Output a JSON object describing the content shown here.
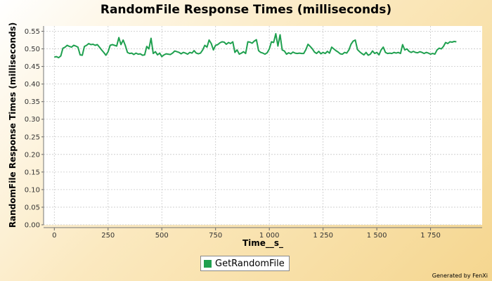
{
  "chart_data": {
    "type": "line",
    "title": "RandomFile Response Times (milliseconds)",
    "xlabel": "Time__s_",
    "ylabel": "RandomFile Response Times (milliseconds)",
    "xlim": [
      -50,
      1990
    ],
    "ylim": [
      0,
      0.565
    ],
    "x_ticks": [
      0,
      250,
      500,
      750,
      1000,
      1250,
      1500,
      1750
    ],
    "x_tick_labels": [
      "0",
      "250",
      "500",
      "750",
      "1 000",
      "1 250",
      "1 500",
      "1 750"
    ],
    "y_ticks": [
      0,
      0.05,
      0.1,
      0.15,
      0.2,
      0.25,
      0.3,
      0.35,
      0.4,
      0.45,
      0.5,
      0.55
    ],
    "y_tick_labels": [
      "0.00",
      "0.05",
      "0.10",
      "0.15",
      "0.20",
      "0.25",
      "0.30",
      "0.35",
      "0.40",
      "0.45",
      "0.50",
      "0.55"
    ],
    "grid": true,
    "legend_position": "bottom-center",
    "series": [
      {
        "name": "GetRandomFile",
        "color": "#1fa04f",
        "points": [
          [
            0,
            0.477
          ],
          [
            10,
            0.478
          ],
          [
            20,
            0.475
          ],
          [
            30,
            0.48
          ],
          [
            40,
            0.502
          ],
          [
            50,
            0.505
          ],
          [
            60,
            0.51
          ],
          [
            70,
            0.507
          ],
          [
            80,
            0.505
          ],
          [
            90,
            0.51
          ],
          [
            100,
            0.508
          ],
          [
            110,
            0.505
          ],
          [
            120,
            0.483
          ],
          [
            130,
            0.482
          ],
          [
            140,
            0.507
          ],
          [
            150,
            0.51
          ],
          [
            160,
            0.515
          ],
          [
            170,
            0.512
          ],
          [
            180,
            0.513
          ],
          [
            190,
            0.51
          ],
          [
            200,
            0.512
          ],
          [
            210,
            0.505
          ],
          [
            220,
            0.497
          ],
          [
            230,
            0.49
          ],
          [
            240,
            0.482
          ],
          [
            250,
            0.492
          ],
          [
            260,
            0.51
          ],
          [
            270,
            0.512
          ],
          [
            280,
            0.51
          ],
          [
            290,
            0.508
          ],
          [
            300,
            0.532
          ],
          [
            310,
            0.512
          ],
          [
            320,
            0.525
          ],
          [
            330,
            0.51
          ],
          [
            340,
            0.49
          ],
          [
            350,
            0.487
          ],
          [
            360,
            0.488
          ],
          [
            370,
            0.484
          ],
          [
            380,
            0.488
          ],
          [
            390,
            0.485
          ],
          [
            400,
            0.486
          ],
          [
            410,
            0.482
          ],
          [
            420,
            0.483
          ],
          [
            430,
            0.507
          ],
          [
            440,
            0.5
          ],
          [
            450,
            0.53
          ],
          [
            460,
            0.487
          ],
          [
            470,
            0.492
          ],
          [
            480,
            0.483
          ],
          [
            490,
            0.488
          ],
          [
            500,
            0.478
          ],
          [
            510,
            0.483
          ],
          [
            520,
            0.486
          ],
          [
            530,
            0.485
          ],
          [
            540,
            0.484
          ],
          [
            550,
            0.488
          ],
          [
            560,
            0.494
          ],
          [
            570,
            0.492
          ],
          [
            580,
            0.49
          ],
          [
            590,
            0.486
          ],
          [
            600,
            0.49
          ],
          [
            610,
            0.488
          ],
          [
            620,
            0.485
          ],
          [
            630,
            0.49
          ],
          [
            640,
            0.488
          ],
          [
            650,
            0.495
          ],
          [
            660,
            0.488
          ],
          [
            670,
            0.486
          ],
          [
            680,
            0.488
          ],
          [
            690,
            0.497
          ],
          [
            700,
            0.51
          ],
          [
            710,
            0.505
          ],
          [
            720,
            0.525
          ],
          [
            730,
            0.515
          ],
          [
            740,
            0.497
          ],
          [
            750,
            0.51
          ],
          [
            760,
            0.512
          ],
          [
            770,
            0.517
          ],
          [
            780,
            0.52
          ],
          [
            790,
            0.519
          ],
          [
            800,
            0.513
          ],
          [
            810,
            0.518
          ],
          [
            820,
            0.515
          ],
          [
            830,
            0.52
          ],
          [
            840,
            0.49
          ],
          [
            850,
            0.497
          ],
          [
            860,
            0.485
          ],
          [
            870,
            0.488
          ],
          [
            880,
            0.492
          ],
          [
            890,
            0.487
          ],
          [
            900,
            0.52
          ],
          [
            910,
            0.519
          ],
          [
            920,
            0.516
          ],
          [
            930,
            0.522
          ],
          [
            940,
            0.526
          ],
          [
            950,
            0.495
          ],
          [
            960,
            0.49
          ],
          [
            970,
            0.488
          ],
          [
            980,
            0.485
          ],
          [
            990,
            0.489
          ],
          [
            1000,
            0.5
          ],
          [
            1010,
            0.52
          ],
          [
            1020,
            0.518
          ],
          [
            1030,
            0.543
          ],
          [
            1040,
            0.508
          ],
          [
            1050,
            0.54
          ],
          [
            1060,
            0.497
          ],
          [
            1070,
            0.494
          ],
          [
            1080,
            0.485
          ],
          [
            1090,
            0.489
          ],
          [
            1100,
            0.486
          ],
          [
            1110,
            0.491
          ],
          [
            1120,
            0.488
          ],
          [
            1130,
            0.487
          ],
          [
            1140,
            0.488
          ],
          [
            1150,
            0.487
          ],
          [
            1160,
            0.487
          ],
          [
            1170,
            0.498
          ],
          [
            1180,
            0.513
          ],
          [
            1190,
            0.507
          ],
          [
            1200,
            0.5
          ],
          [
            1210,
            0.491
          ],
          [
            1220,
            0.487
          ],
          [
            1230,
            0.493
          ],
          [
            1240,
            0.486
          ],
          [
            1250,
            0.49
          ],
          [
            1260,
            0.487
          ],
          [
            1270,
            0.493
          ],
          [
            1280,
            0.488
          ],
          [
            1290,
            0.505
          ],
          [
            1300,
            0.5
          ],
          [
            1310,
            0.495
          ],
          [
            1320,
            0.491
          ],
          [
            1330,
            0.486
          ],
          [
            1340,
            0.485
          ],
          [
            1350,
            0.49
          ],
          [
            1360,
            0.488
          ],
          [
            1370,
            0.497
          ],
          [
            1380,
            0.513
          ],
          [
            1390,
            0.522
          ],
          [
            1400,
            0.525
          ],
          [
            1410,
            0.498
          ],
          [
            1420,
            0.492
          ],
          [
            1430,
            0.487
          ],
          [
            1440,
            0.483
          ],
          [
            1450,
            0.49
          ],
          [
            1460,
            0.482
          ],
          [
            1470,
            0.485
          ],
          [
            1480,
            0.494
          ],
          [
            1490,
            0.487
          ],
          [
            1500,
            0.49
          ],
          [
            1510,
            0.483
          ],
          [
            1520,
            0.497
          ],
          [
            1530,
            0.505
          ],
          [
            1540,
            0.49
          ],
          [
            1550,
            0.487
          ],
          [
            1560,
            0.488
          ],
          [
            1570,
            0.487
          ],
          [
            1580,
            0.49
          ],
          [
            1590,
            0.488
          ],
          [
            1600,
            0.49
          ],
          [
            1610,
            0.487
          ],
          [
            1620,
            0.512
          ],
          [
            1630,
            0.497
          ],
          [
            1640,
            0.5
          ],
          [
            1650,
            0.493
          ],
          [
            1660,
            0.49
          ],
          [
            1670,
            0.493
          ],
          [
            1680,
            0.49
          ],
          [
            1690,
            0.489
          ],
          [
            1700,
            0.492
          ],
          [
            1710,
            0.49
          ],
          [
            1720,
            0.487
          ],
          [
            1730,
            0.49
          ],
          [
            1740,
            0.488
          ],
          [
            1750,
            0.485
          ],
          [
            1760,
            0.487
          ],
          [
            1770,
            0.485
          ],
          [
            1780,
            0.497
          ],
          [
            1790,
            0.502
          ],
          [
            1800,
            0.5
          ],
          [
            1810,
            0.507
          ],
          [
            1820,
            0.518
          ],
          [
            1830,
            0.515
          ],
          [
            1840,
            0.52
          ],
          [
            1850,
            0.519
          ],
          [
            1860,
            0.521
          ],
          [
            1870,
            0.52
          ]
        ]
      }
    ]
  },
  "footer": "Generated by FenXi"
}
